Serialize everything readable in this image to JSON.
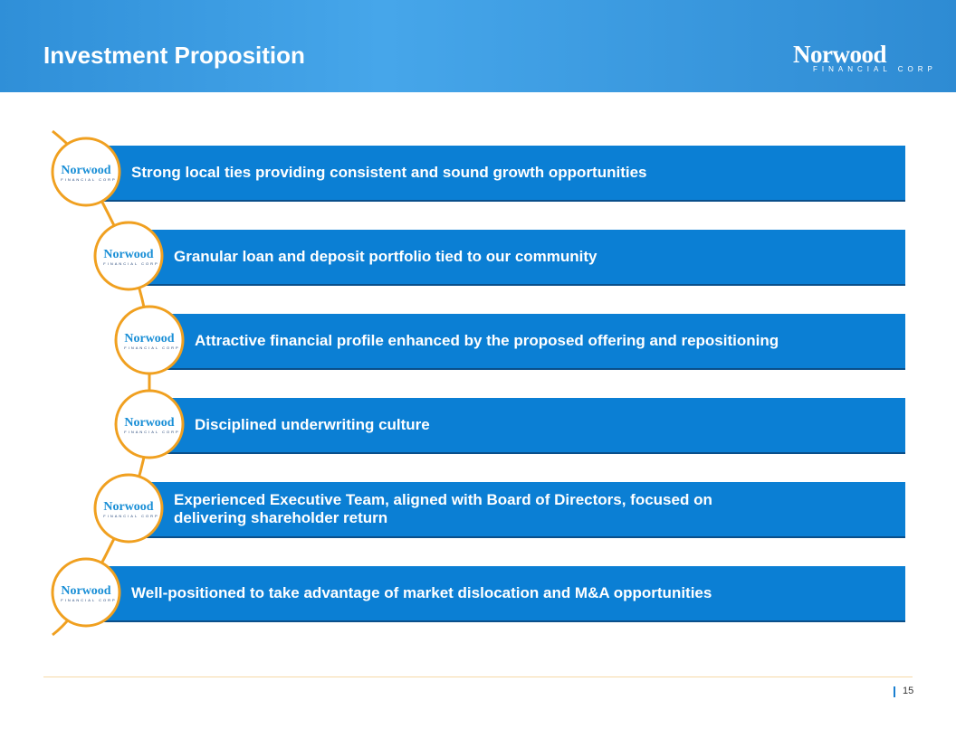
{
  "header": {
    "title": "Investment Proposition"
  },
  "logo": {
    "name": "Norwood",
    "tagline": "FINANCIAL CORP"
  },
  "items": [
    "Strong local ties providing consistent and sound growth opportunities",
    "Granular loan and deposit portfolio tied to our community",
    "Attractive financial profile enhanced by the proposed offering and repositioning",
    "Disciplined underwriting culture",
    "Experienced Executive Team, aligned with Board of Directors, focused on delivering shareholder return",
    "Well-positioned to take advantage of market dislocation and M&A opportunities"
  ],
  "footer": {
    "page_number": "15"
  }
}
